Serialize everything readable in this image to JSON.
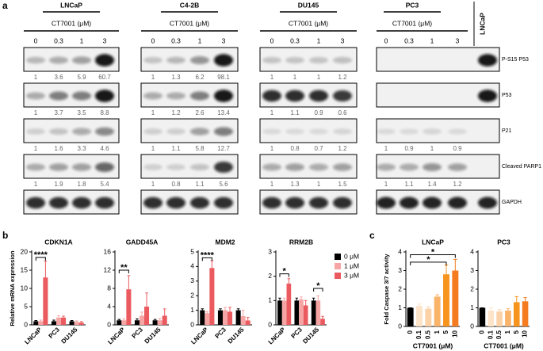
{
  "panel_labels": [
    "a",
    "b",
    "c"
  ],
  "blot": {
    "cell_lines": [
      "LNCaP",
      "C4-2B",
      "DU145",
      "PC3"
    ],
    "unit_label": "CT7001 (μM)",
    "doses": [
      0,
      0.3,
      1,
      3
    ],
    "control_lane": "LNCaP",
    "rows": [
      {
        "label": "P-S15 P53",
        "quant": [
          [
            1,
            3.6,
            5.9,
            60.7
          ],
          [
            1,
            1.3,
            6.2,
            98.1
          ],
          [
            1,
            1,
            1,
            1.2
          ],
          null
        ]
      },
      {
        "label": "P53",
        "quant": [
          [
            1,
            3.7,
            3.5,
            8.8
          ],
          [
            1,
            1.2,
            2.6,
            13.4
          ],
          [
            1,
            1.1,
            0.9,
            0.6
          ],
          null
        ]
      },
      {
        "label": "P21",
        "quant": [
          [
            1,
            1.6,
            3.3,
            4.6
          ],
          [
            1,
            1.1,
            5.8,
            12.7
          ],
          [
            1,
            0.8,
            0.7,
            1.2
          ],
          [
            1,
            0.9,
            1,
            0.9
          ]
        ]
      },
      {
        "label": "Cleaved PARP1",
        "quant": [
          [
            1,
            1.9,
            1.8,
            5.4
          ],
          [
            1,
            0.8,
            1.1,
            5.6
          ],
          [
            1,
            1.3,
            1,
            1.5
          ],
          [
            1,
            1.1,
            1.4,
            1.2
          ]
        ]
      },
      {
        "label": "GAPDH"
      }
    ]
  },
  "chart_data": [
    {
      "type": "bar",
      "title": "CDKN1A",
      "y_label": "Relative mRNA expression",
      "categories": [
        "LNCaP",
        "PC3",
        "DU145"
      ],
      "series": [
        {
          "name": "0 μM",
          "color": "#000000",
          "values": [
            1,
            1,
            1
          ],
          "errors": [
            0.2,
            0.3,
            0.2
          ]
        },
        {
          "name": "1 μM",
          "color": "#f6a5a5",
          "values": [
            1,
            2,
            0.8
          ],
          "errors": [
            0.3,
            0.5,
            0.3
          ]
        },
        {
          "name": "3 μM",
          "color": "#ea5a5f",
          "values": [
            13,
            2,
            0.6
          ],
          "errors": [
            4.5,
            0.4,
            0.3
          ]
        }
      ],
      "ylim": [
        0,
        20
      ],
      "yticks": [
        0,
        5,
        10,
        15,
        20
      ],
      "annotations": [
        "****"
      ]
    },
    {
      "type": "bar",
      "title": "GADD45A",
      "categories": [
        "LNCaP",
        "PC3",
        "DU145"
      ],
      "series": [
        {
          "name": "0 μM",
          "color": "#000000",
          "values": [
            1,
            1,
            1
          ],
          "errors": [
            0.2,
            0.3,
            0.2
          ]
        },
        {
          "name": "1 μM",
          "color": "#f6a5a5",
          "values": [
            1,
            2,
            1
          ],
          "errors": [
            0.3,
            0.8,
            0.4
          ]
        },
        {
          "name": "3 μM",
          "color": "#ea5a5f",
          "values": [
            7.8,
            4,
            2
          ],
          "errors": [
            3,
            3,
            1.5
          ]
        }
      ],
      "ylim": [
        0,
        16
      ],
      "yticks": [
        0,
        4,
        8,
        12,
        16
      ],
      "annotations": [
        "**"
      ]
    },
    {
      "type": "bar",
      "title": "MDM2",
      "categories": [
        "LNCaP",
        "PC3",
        "DU145"
      ],
      "series": [
        {
          "name": "0 μM",
          "color": "#000000",
          "values": [
            1,
            1,
            1
          ],
          "errors": [
            0.1,
            0.1,
            0.1
          ]
        },
        {
          "name": "1 μM",
          "color": "#f6a5a5",
          "values": [
            0.8,
            1,
            0.6
          ],
          "errors": [
            0.1,
            0.2,
            0.4
          ]
        },
        {
          "name": "3 μM",
          "color": "#ea5a5f",
          "values": [
            3.9,
            0.9,
            0.3
          ],
          "errors": [
            0.5,
            0.3,
            0.2
          ]
        }
      ],
      "ylim": [
        0,
        5
      ],
      "yticks": [
        0,
        1,
        2,
        3,
        4,
        5
      ],
      "annotations": [
        "****"
      ]
    },
    {
      "type": "bar",
      "title": "RRM2B",
      "categories": [
        "LNCaP",
        "PC3",
        "DU145"
      ],
      "series": [
        {
          "name": "0 μM",
          "color": "#000000",
          "values": [
            1,
            1,
            1
          ],
          "errors": [
            0.1,
            0.1,
            0.1
          ]
        },
        {
          "name": "1 μM",
          "color": "#f6a5a5",
          "values": [
            1,
            1.05,
            1
          ],
          "errors": [
            0.1,
            0.1,
            0.2
          ]
        },
        {
          "name": "3 μM",
          "color": "#ea5a5f",
          "values": [
            1.7,
            0.8,
            0.25
          ],
          "errors": [
            0.2,
            0.2,
            0.1
          ]
        }
      ],
      "ylim": [
        0,
        3
      ],
      "yticks": [
        0,
        1,
        2,
        3
      ],
      "legend": "right",
      "annotations": [
        "*",
        "*"
      ]
    },
    {
      "type": "bar",
      "title": "LNCaP",
      "y_label": "Fold Caspase 3/7 activity",
      "x_label": "CT7001 (μM)",
      "categories": [
        "0",
        "0.1",
        "0.5",
        "1",
        "5",
        "10"
      ],
      "values": [
        1,
        1.1,
        0.95,
        1.6,
        2.8,
        3.0
      ],
      "errors": [
        0,
        0.1,
        0.1,
        0.1,
        0.5,
        0.6
      ],
      "colors": [
        "#000000",
        "#fde3c8",
        "#fbd2a8",
        "#f9b46a",
        "#f7941d",
        "#f47b20"
      ],
      "ylim": [
        0,
        4
      ],
      "yticks": [
        0,
        1,
        2,
        3,
        4
      ],
      "annotations": [
        "*",
        "*"
      ]
    },
    {
      "type": "bar",
      "title": "PC3",
      "x_label": "CT7001 (μM)",
      "categories": [
        "0",
        "0.1",
        "0.5",
        "1",
        "5",
        "10"
      ],
      "values": [
        1,
        0.85,
        0.8,
        0.85,
        1.3,
        1.35
      ],
      "errors": [
        0,
        0.15,
        0.1,
        0.1,
        0.3,
        0.2
      ],
      "colors": [
        "#000000",
        "#fde3c8",
        "#fbd2a8",
        "#f9b46a",
        "#f7941d",
        "#f47b20"
      ],
      "ylim": [
        0,
        4
      ],
      "yticks": [
        0,
        1,
        2,
        3,
        4
      ]
    }
  ]
}
